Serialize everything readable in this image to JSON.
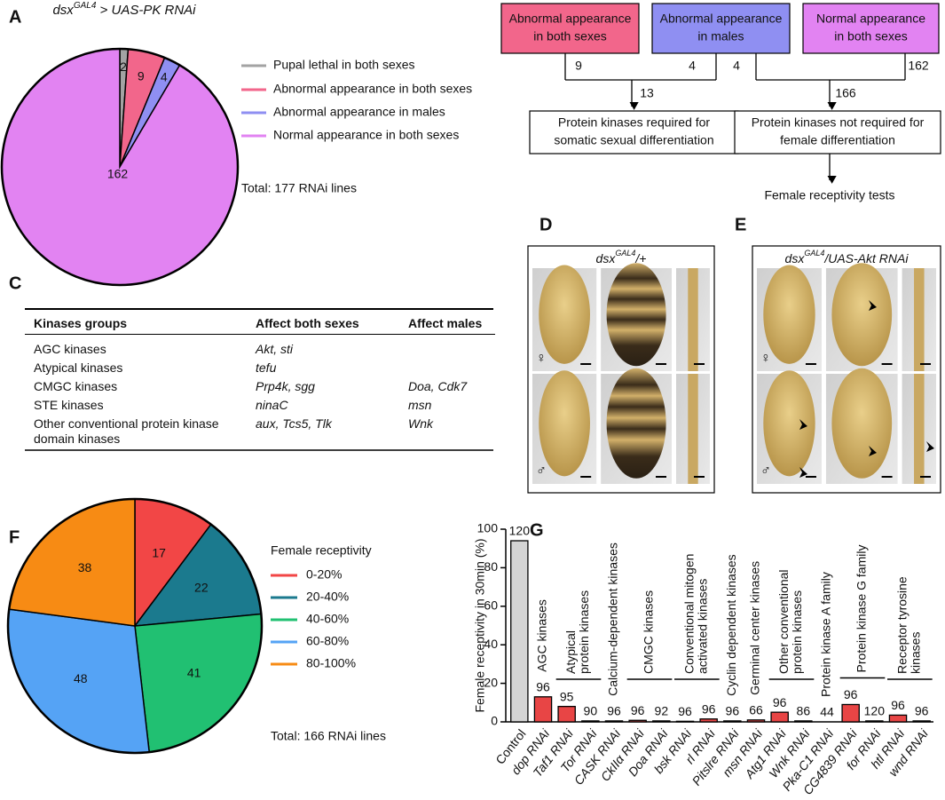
{
  "panels": [
    "A",
    "B",
    "C",
    "D",
    "E",
    "F",
    "G"
  ],
  "chart_data": [
    {
      "type": "pie",
      "title": {
        "gene": "dsx",
        "sup": "GAL4",
        "rest": " > UAS-PK RNAi"
      },
      "categories": [
        "Pupal lethal in both sexes",
        "Abnormal appearance in both sexes",
        "Abnormal appearance in males",
        "Normal appearance in both sexes"
      ],
      "values": [
        2,
        9,
        4,
        162
      ],
      "colors": [
        "#a3a3a3",
        "#f2668b",
        "#8f8ff2",
        "#e283f2"
      ],
      "annotation": "Total: 177 RNAi lines"
    },
    {
      "type": "pie",
      "title": {
        "gene": "dsx",
        "sup": "GAL4",
        "rest": "> UAS-PK RNAi"
      },
      "legend_title": "Female receptivity",
      "categories": [
        "0-20%",
        "20-40%",
        "40-60%",
        "60-80%",
        "80-100%"
      ],
      "values": [
        17,
        22,
        41,
        48,
        38
      ],
      "colors": [
        "#f24646",
        "#1b7a8e",
        "#21c072",
        "#55a3f5",
        "#f78b14"
      ],
      "annotation": "Total: 166 RNAi lines"
    },
    {
      "type": "bar",
      "ylabel": "Female receptivity in 30min (%)",
      "categories": [
        "Control",
        "dop RNAi",
        "Taf1 RNAi",
        "Tor RNAi",
        "CASK RNAi",
        "CkIIα RNAi",
        "Doa RNAi",
        "bsk RNAi",
        "rl RNAi",
        "Pitslre RNAi",
        "msn RNAi",
        "Atg1 RNAi",
        "Wnk RNAi",
        "Pka-C1 RNAi",
        "CG4839 RNAi",
        "for RNAi",
        "htl RNAi",
        "wnd RNAi"
      ],
      "values": [
        94,
        13,
        8,
        0.5,
        0.5,
        0.8,
        0.5,
        0.3,
        1.5,
        0.5,
        1,
        5,
        0.5,
        0,
        9,
        0.5,
        3.5,
        0.5
      ],
      "n_labels": [
        120,
        96,
        95,
        90,
        96,
        96,
        92,
        96,
        96,
        96,
        66,
        96,
        86,
        44,
        96,
        120,
        96,
        96
      ],
      "control_color": "#d4d4d4",
      "color": "#e84545",
      "ylim": [
        0,
        100
      ],
      "yticks": [
        0,
        20,
        40,
        60,
        80,
        100
      ],
      "groups": [
        {
          "lines": [
            "AGC kinases"
          ],
          "from": 1,
          "to": 1
        },
        {
          "lines": [
            "Atypical",
            "protein kinases"
          ],
          "from": 2,
          "to": 3
        },
        {
          "lines": [
            "Calcium-dependent kinases"
          ],
          "from": 4,
          "to": 4
        },
        {
          "lines": [
            "CMGC kinases"
          ],
          "from": 5,
          "to": 6
        },
        {
          "lines": [
            "Conventional mitogen",
            "activated kinases"
          ],
          "from": 7,
          "to": 8
        },
        {
          "lines": [
            "Cyclin dependent kinases"
          ],
          "from": 9,
          "to": 9
        },
        {
          "lines": [
            "Germinal center kinases"
          ],
          "from": 10,
          "to": 10
        },
        {
          "lines": [
            "Other conventional",
            "protein kinases"
          ],
          "from": 11,
          "to": 12
        },
        {
          "lines": [
            "Protein kinase A family"
          ],
          "from": 13,
          "to": 13
        },
        {
          "lines": [
            "Protein kinase G family"
          ],
          "from": 14,
          "to": 15
        },
        {
          "lines": [
            "Receptor tyrosine",
            "kinases"
          ],
          "from": 16,
          "to": 17
        }
      ]
    }
  ],
  "diagram": {
    "boxes": [
      [
        "Abnormal appearance",
        "in both sexes"
      ],
      [
        "Abnormal appearance",
        "in males"
      ],
      [
        "Normal appearance",
        "in both sexes"
      ]
    ],
    "counts": [
      "9",
      "4",
      "4",
      "162"
    ],
    "sums": [
      "13",
      "166"
    ],
    "outcomes": [
      [
        "Protein kinases required for",
        "somatic sexual differentiation"
      ],
      [
        "Protein kinases not required for",
        "female differentiation"
      ]
    ],
    "final": "Female receptivity tests"
  },
  "table": {
    "header": [
      "Kinases groups",
      "Affect both sexes",
      "Affect males"
    ],
    "rows": [
      [
        "AGC kinases",
        "Akt, sti",
        ""
      ],
      [
        "Atypical kinases",
        "tefu",
        ""
      ],
      [
        "CMGC kinases",
        "Prp4k, sgg",
        "Doa, Cdk7"
      ],
      [
        "STE kinases",
        "ninaC",
        "msn"
      ],
      [
        "Other conventional protein kinase domain kinases",
        "aux, Tcs5, Tlk",
        "Wnk"
      ]
    ]
  },
  "photos": [
    {
      "title": {
        "gene": "dsx",
        "sup": "GAL4",
        "rest": "/+"
      },
      "female": "♀",
      "male": "♂"
    },
    {
      "title": {
        "gene": "dsx",
        "sup": "GAL4",
        "rest": "/UAS-Akt RNAi"
      },
      "female": "♀",
      "male": "♂"
    }
  ]
}
